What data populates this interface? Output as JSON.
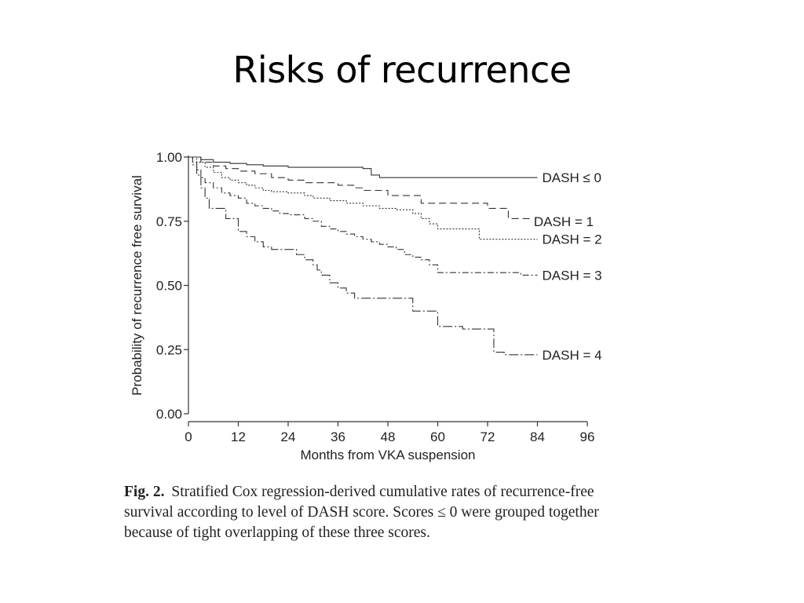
{
  "slide": {
    "title": "Risks of recurrence"
  },
  "caption": {
    "label": "Fig. 2.",
    "text": "Stratified Cox regression-derived cumulative rates of recurrence-free survival according to level of DASH score. Scores ≤ 0 were grouped together because of tight overlapping of these three scores."
  },
  "chart_data": {
    "type": "line",
    "subtype": "kaplan-meier step",
    "xlabel": "Months from VKA suspension",
    "ylabel": "Probability of recurrence free survival",
    "xticks": [
      0,
      12,
      24,
      36,
      48,
      60,
      72,
      84,
      96
    ],
    "yticks": [
      0.0,
      0.25,
      0.5,
      0.75,
      1.0
    ],
    "ytick_labels": [
      "0.00",
      "0.25",
      "0.50",
      "0.75",
      "1.00"
    ],
    "xlim": [
      0,
      96
    ],
    "ylim": [
      0,
      1
    ],
    "grid": false,
    "legend": "inline labels at right end of each curve",
    "series": [
      {
        "name": "DASH ≤ 0",
        "dash": "",
        "points": [
          [
            0,
            1.0
          ],
          [
            3,
            0.99
          ],
          [
            6,
            0.98
          ],
          [
            10,
            0.975
          ],
          [
            14,
            0.97
          ],
          [
            18,
            0.965
          ],
          [
            24,
            0.96
          ],
          [
            42,
            0.955
          ],
          [
            44,
            0.93
          ],
          [
            46,
            0.92
          ],
          [
            84,
            0.92
          ]
        ]
      },
      {
        "name": "DASH = 1",
        "dash": "9,5",
        "points": [
          [
            0,
            1.0
          ],
          [
            3,
            0.98
          ],
          [
            6,
            0.965
          ],
          [
            9,
            0.955
          ],
          [
            12,
            0.945
          ],
          [
            16,
            0.935
          ],
          [
            20,
            0.92
          ],
          [
            24,
            0.91
          ],
          [
            28,
            0.9
          ],
          [
            36,
            0.89
          ],
          [
            40,
            0.88
          ],
          [
            42,
            0.87
          ],
          [
            48,
            0.85
          ],
          [
            56,
            0.82
          ],
          [
            58,
            0.82
          ],
          [
            70,
            0.82
          ],
          [
            72,
            0.8
          ],
          [
            74,
            0.8
          ],
          [
            77,
            0.76
          ],
          [
            80,
            0.76
          ],
          [
            82,
            0.75
          ]
        ]
      },
      {
        "name": "DASH = 2",
        "dash": "2,2",
        "points": [
          [
            0,
            1.0
          ],
          [
            2,
            0.98
          ],
          [
            4,
            0.96
          ],
          [
            6,
            0.94
          ],
          [
            8,
            0.92
          ],
          [
            10,
            0.91
          ],
          [
            12,
            0.9
          ],
          [
            14,
            0.89
          ],
          [
            16,
            0.88
          ],
          [
            18,
            0.87
          ],
          [
            20,
            0.865
          ],
          [
            24,
            0.86
          ],
          [
            28,
            0.85
          ],
          [
            30,
            0.84
          ],
          [
            34,
            0.83
          ],
          [
            38,
            0.82
          ],
          [
            42,
            0.81
          ],
          [
            46,
            0.8
          ],
          [
            50,
            0.795
          ],
          [
            54,
            0.78
          ],
          [
            56,
            0.76
          ],
          [
            58,
            0.74
          ],
          [
            60,
            0.72
          ],
          [
            66,
            0.72
          ],
          [
            70,
            0.68
          ],
          [
            84,
            0.68
          ]
        ]
      },
      {
        "name": "DASH = 3",
        "dash": "8,3,2,3",
        "points": [
          [
            0,
            1.0
          ],
          [
            1,
            0.98
          ],
          [
            2,
            0.95
          ],
          [
            3,
            0.92
          ],
          [
            4,
            0.9
          ],
          [
            6,
            0.88
          ],
          [
            8,
            0.86
          ],
          [
            10,
            0.85
          ],
          [
            12,
            0.84
          ],
          [
            14,
            0.82
          ],
          [
            16,
            0.81
          ],
          [
            18,
            0.8
          ],
          [
            20,
            0.79
          ],
          [
            22,
            0.78
          ],
          [
            24,
            0.775
          ],
          [
            28,
            0.76
          ],
          [
            30,
            0.75
          ],
          [
            32,
            0.73
          ],
          [
            34,
            0.72
          ],
          [
            36,
            0.71
          ],
          [
            38,
            0.7
          ],
          [
            40,
            0.69
          ],
          [
            42,
            0.68
          ],
          [
            44,
            0.67
          ],
          [
            46,
            0.66
          ],
          [
            48,
            0.65
          ],
          [
            50,
            0.64
          ],
          [
            52,
            0.62
          ],
          [
            54,
            0.61
          ],
          [
            56,
            0.6
          ],
          [
            58,
            0.58
          ],
          [
            60,
            0.55
          ],
          [
            70,
            0.55
          ],
          [
            80,
            0.54
          ],
          [
            84,
            0.54
          ]
        ]
      },
      {
        "name": "DASH = 4",
        "dash": "12,3,2,3",
        "points": [
          [
            0,
            1.0
          ],
          [
            1,
            0.97
          ],
          [
            2,
            0.93
          ],
          [
            3,
            0.88
          ],
          [
            4,
            0.84
          ],
          [
            5,
            0.8
          ],
          [
            6,
            0.8
          ],
          [
            9,
            0.76
          ],
          [
            12,
            0.71
          ],
          [
            14,
            0.69
          ],
          [
            16,
            0.67
          ],
          [
            18,
            0.65
          ],
          [
            20,
            0.64
          ],
          [
            24,
            0.64
          ],
          [
            26,
            0.62
          ],
          [
            28,
            0.6
          ],
          [
            30,
            0.58
          ],
          [
            31,
            0.56
          ],
          [
            32,
            0.54
          ],
          [
            34,
            0.51
          ],
          [
            36,
            0.49
          ],
          [
            38,
            0.47
          ],
          [
            40,
            0.45
          ],
          [
            48,
            0.45
          ],
          [
            52,
            0.45
          ],
          [
            54,
            0.4
          ],
          [
            58,
            0.4
          ],
          [
            60,
            0.34
          ],
          [
            64,
            0.34
          ],
          [
            66,
            0.33
          ],
          [
            73,
            0.33
          ],
          [
            73.5,
            0.24
          ],
          [
            76,
            0.23
          ],
          [
            82,
            0.23
          ],
          [
            84,
            0.23
          ]
        ]
      }
    ]
  }
}
